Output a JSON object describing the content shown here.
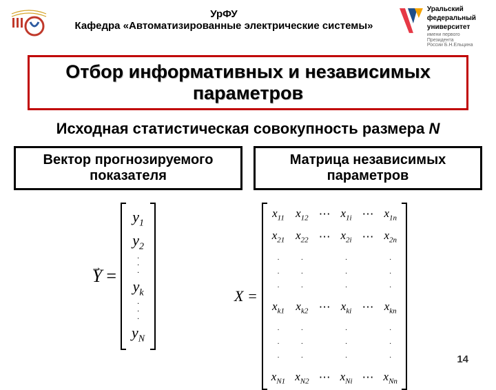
{
  "header": {
    "university_short": "УрФУ",
    "department": "Кафедра «Автоматизированные электрические системы»",
    "uni_name1": "Уральский",
    "uni_name2": "федеральный",
    "uni_name3": "университет",
    "uni_sub1": "имени первого Президента",
    "uni_sub2": "России Б.Н.Ельцина",
    "left_logo_colors": {
      "red": "#c0392b",
      "blue": "#2c5aa0",
      "gold": "#d4a020"
    },
    "right_v_colors": [
      "#e63946",
      "#1d4e89",
      "#f4a300"
    ]
  },
  "title": {
    "line1": "Отбор информативных и независимых",
    "line2": "параметров",
    "border_color": "#c00000"
  },
  "subtitle": {
    "prefix": "Исходная статистическая совокупность размера ",
    "var": "N"
  },
  "boxes": {
    "left": "Вектор прогнозируемого показателя",
    "right": "Матрица независимых параметров"
  },
  "vector": {
    "label": "Y",
    "eq": " =",
    "elements": [
      "y",
      "y",
      "y",
      "y"
    ],
    "subs": [
      "1",
      "2",
      "k",
      "N"
    ]
  },
  "matrix": {
    "label": "X =",
    "rows": [
      [
        "x_11",
        "x_12",
        "…",
        "x_1i",
        "…",
        "x_1n"
      ],
      [
        "x_21",
        "x_22",
        "…",
        "x_2i",
        "…",
        "x_2n"
      ],
      [
        "⋮",
        "⋮",
        "",
        "⋮",
        "",
        "⋮"
      ],
      [
        "x_k1",
        "x_k2",
        "…",
        "x_ki",
        "…",
        "x_kn"
      ],
      [
        "⋮",
        "⋮",
        "",
        "⋮",
        "",
        "⋮"
      ],
      [
        "x_N1",
        "x_N2",
        "…",
        "x_Ni",
        "…",
        "x_Nn"
      ]
    ]
  },
  "page_number": "14",
  "colors": {
    "text": "#000000",
    "border_black": "#000000"
  }
}
